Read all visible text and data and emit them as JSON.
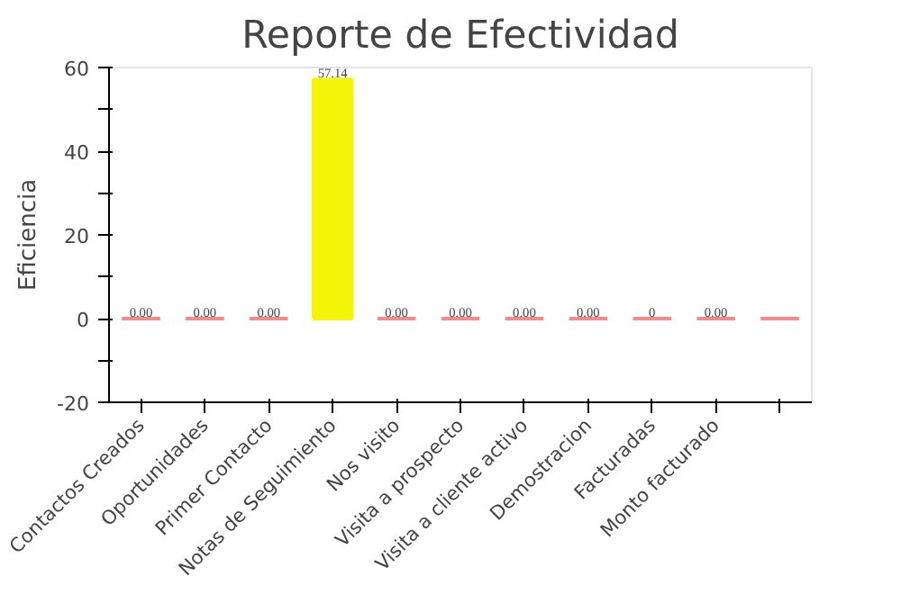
{
  "chart_data": {
    "type": "bar",
    "title": "Reporte de Efectividad",
    "ylabel": "Eficiencia",
    "categories": [
      "Contactos Creados",
      "Oportunidades",
      "Primer Contacto",
      "Notas de Seguimiento",
      "Nos visito",
      "Visita a prospecto",
      "Visita a cliente activo",
      "Demostracion",
      "Facturadas",
      "Monto facturado",
      null
    ],
    "values": [
      0,
      0,
      0,
      57.14,
      0,
      0,
      0,
      0,
      0,
      0,
      0
    ],
    "colors": [
      "#f58a8a",
      "#f58a8a",
      "#f58a8a",
      "#f5f50a",
      "#f58a8a",
      "#f58a8a",
      "#f58a8a",
      "#f58a8a",
      "#f58a8a",
      "#f58a8a",
      "#f58a8a"
    ],
    "value_labels": [
      "0.00",
      "0.00",
      "0.00",
      "57.14",
      "0.00",
      "0.00",
      "0.00",
      "0.00",
      "0",
      "0.00",
      null
    ],
    "ylim": [
      -20,
      60
    ],
    "yticks": [
      -20,
      {
        "value": -10,
        "label": null
      },
      0,
      {
        "value": 10,
        "label": null
      },
      20,
      {
        "value": 30,
        "label": null
      },
      40,
      {
        "value": 50,
        "label": null
      },
      60
    ],
    "grid": false
  }
}
